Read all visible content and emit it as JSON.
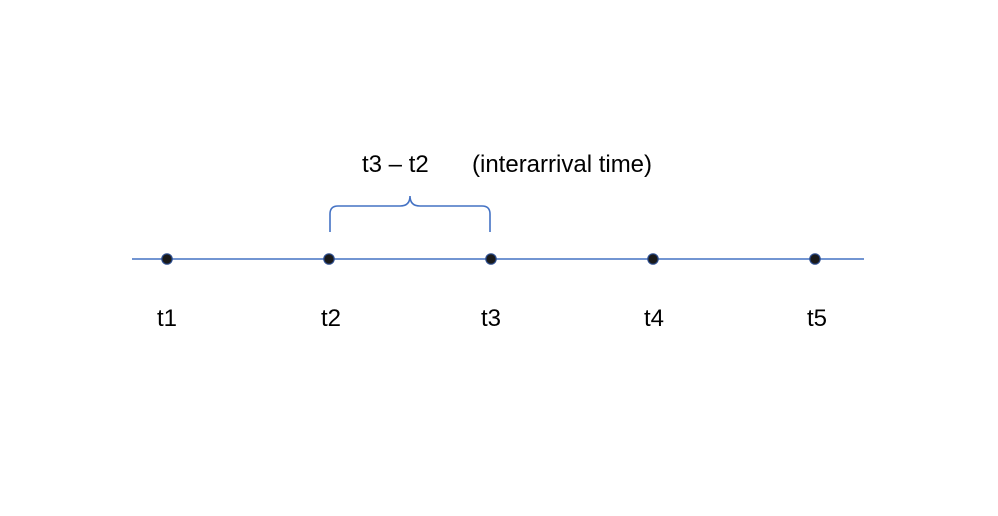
{
  "diagram": {
    "interval_label": "t3 – t2",
    "interval_note": "(interarrival time)",
    "points": [
      {
        "label": "t1"
      },
      {
        "label": "t2"
      },
      {
        "label": "t3"
      },
      {
        "label": "t4"
      },
      {
        "label": "t5"
      }
    ],
    "colors": {
      "line": "#4472C4",
      "point_fill": "#1a1a1a",
      "text": "#000000"
    }
  }
}
